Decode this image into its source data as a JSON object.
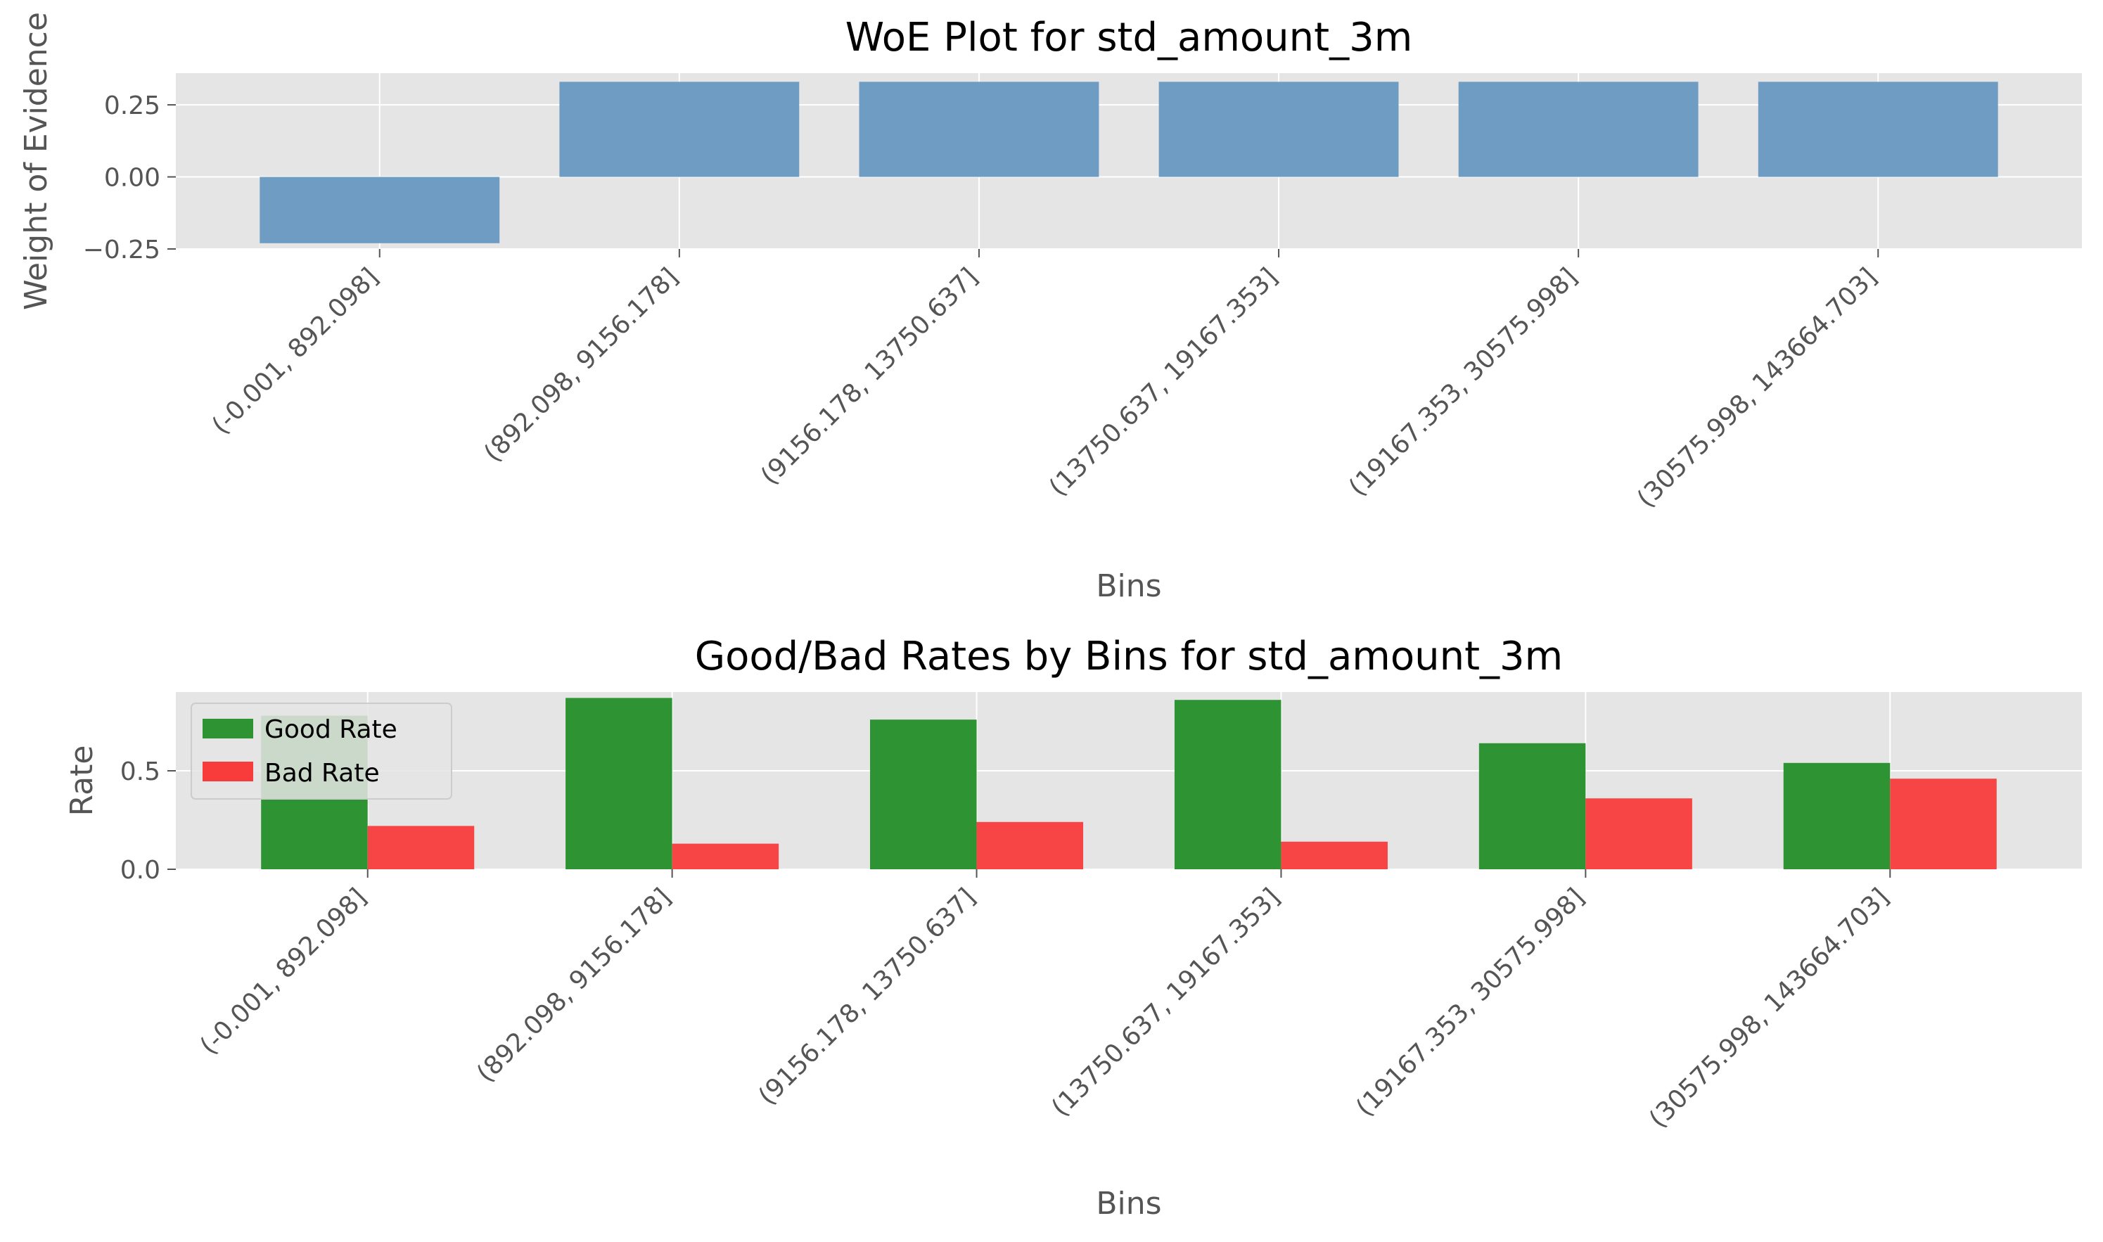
{
  "chart_data": [
    {
      "type": "bar",
      "title": "WoE Plot for std_amount_3m",
      "xlabel": "Bins",
      "ylabel": "Weight of Evidence",
      "categories": [
        "(-0.001, 892.098]",
        "(892.098, 9156.178]",
        "(9156.178, 13750.637]",
        "(13750.637, 19167.353]",
        "(19167.353, 30575.998]",
        "(30575.998, 143664.703]"
      ],
      "values": [
        -0.23,
        0.33,
        0.33,
        0.33,
        0.33,
        0.33
      ],
      "ylim": [
        -0.25,
        0.36
      ],
      "yticks": [
        -0.25,
        0.0,
        0.25
      ],
      "ytick_labels": [
        "−0.25",
        "0.00",
        "0.25"
      ],
      "grid": true,
      "colors": {
        "bar": "#6f9cc3",
        "background": "#e5e5e5"
      }
    },
    {
      "type": "bar",
      "title": "Good/Bad Rates by Bins for std_amount_3m",
      "xlabel": "Bins",
      "ylabel": "Rate",
      "categories": [
        "(-0.001, 892.098]",
        "(892.098, 9156.178]",
        "(9156.178, 13750.637]",
        "(13750.637, 19167.353]",
        "(19167.353, 30575.998]",
        "(30575.998, 143664.703]"
      ],
      "series": [
        {
          "name": "Good Rate",
          "values": [
            0.78,
            0.87,
            0.76,
            0.86,
            0.64,
            0.54
          ],
          "color": "#2e9332"
        },
        {
          "name": "Bad Rate",
          "values": [
            0.22,
            0.13,
            0.24,
            0.14,
            0.36,
            0.46
          ],
          "color": "#f83c3c"
        }
      ],
      "ylim": [
        0.0,
        0.9
      ],
      "yticks": [
        0.0,
        0.5
      ],
      "ytick_labels": [
        "0.0",
        "0.5"
      ],
      "grid": true,
      "legend": "top-left",
      "colors": {
        "background": "#e5e5e5"
      }
    }
  ]
}
